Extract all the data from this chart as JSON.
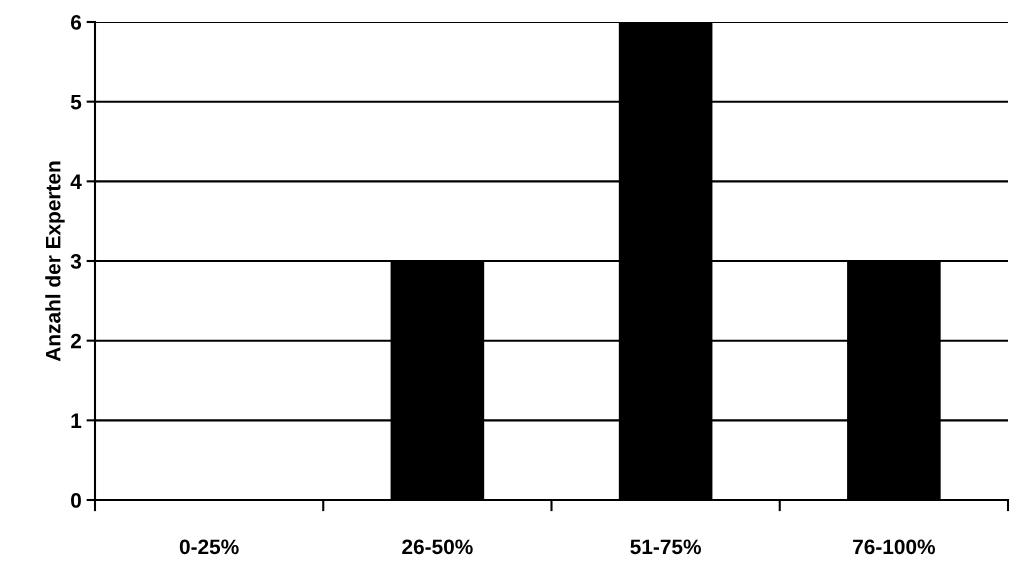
{
  "chart_data": {
    "type": "bar",
    "ylabel": "Anzahl der Experten",
    "categories": [
      "0-25%",
      "26-50%",
      "51-75%",
      "76-100%"
    ],
    "series": [
      {
        "color": "#000000",
        "values": [
          0,
          3,
          6,
          3
        ]
      }
    ],
    "ylim": [
      0,
      6
    ],
    "yticks": [
      0,
      1,
      2,
      3,
      4,
      5,
      6
    ],
    "grid": "y"
  }
}
